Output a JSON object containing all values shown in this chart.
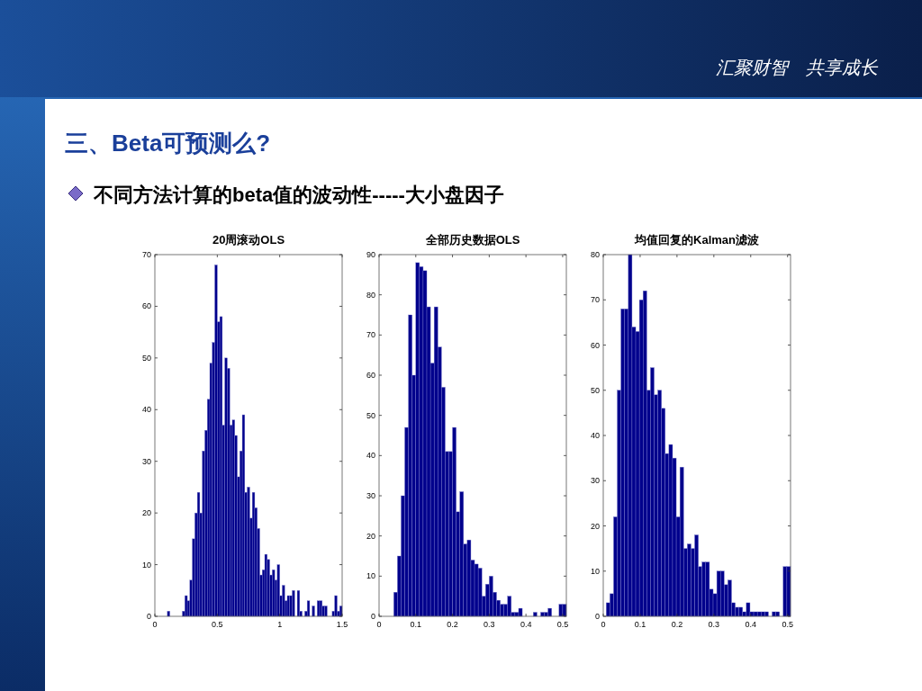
{
  "chart_data": [
    {
      "type": "histogram",
      "title": "20周滚动OLS",
      "annotations": [
        "汇聚财智　共享成长",
        "三、Beta可预测么?",
        "不同方法计算的beta值的波动性-----大小盘因子"
      ],
      "color": "#00008c",
      "bins": [
        0.1,
        0.12,
        0.14,
        0.16,
        0.18,
        0.2,
        0.22,
        0.24,
        0.26,
        0.28,
        0.3,
        0.32,
        0.34,
        0.36,
        0.38,
        0.4,
        0.42,
        0.44,
        0.46,
        0.48,
        0.5,
        0.52,
        0.54,
        0.56,
        0.58,
        0.6,
        0.62,
        0.64,
        0.66,
        0.68,
        0.7,
        0.72,
        0.74,
        0.76,
        0.78,
        0.8,
        0.82,
        0.84,
        0.86,
        0.88,
        0.9,
        0.92,
        0.94,
        0.96,
        0.98,
        1.0,
        1.02,
        1.04,
        1.06,
        1.08,
        1.1,
        1.12,
        1.14,
        1.16,
        1.18,
        1.2,
        1.22,
        1.24,
        1.26,
        1.28,
        1.3,
        1.32,
        1.34,
        1.36,
        1.38,
        1.4,
        1.42,
        1.44,
        1.46,
        1.48,
        1.5
      ],
      "values": [
        1,
        0,
        0,
        0,
        0,
        0,
        1,
        4,
        3,
        7,
        15,
        20,
        24,
        20,
        32,
        36,
        42,
        49,
        53,
        68,
        57,
        58,
        37,
        50,
        48,
        37,
        38,
        35,
        27,
        32,
        39,
        24,
        25,
        19,
        24,
        21,
        17,
        8,
        9,
        12,
        11,
        8,
        9,
        7,
        10,
        4,
        6,
        3,
        4,
        4,
        5,
        0,
        5,
        1,
        0,
        1,
        3,
        0,
        2,
        0,
        3,
        3,
        2,
        2,
        0,
        0,
        1,
        4,
        1,
        2
      ],
      "xlim": [
        0,
        1.5
      ],
      "ylim": [
        0,
        70
      ],
      "xticks": [
        0,
        0.5,
        1,
        1.5
      ],
      "yticks": [
        0,
        10,
        20,
        30,
        40,
        50,
        60,
        70
      ]
    },
    {
      "type": "histogram",
      "title": "全部历史数据OLS",
      "color": "#00008c",
      "bins": [
        0.04,
        0.05,
        0.06,
        0.07,
        0.08,
        0.09,
        0.1,
        0.11,
        0.12,
        0.13,
        0.14,
        0.15,
        0.16,
        0.17,
        0.18,
        0.19,
        0.2,
        0.21,
        0.22,
        0.23,
        0.24,
        0.25,
        0.26,
        0.27,
        0.28,
        0.29,
        0.3,
        0.31,
        0.32,
        0.33,
        0.34,
        0.35,
        0.36,
        0.37,
        0.38,
        0.39,
        0.4,
        0.41,
        0.42,
        0.43,
        0.44,
        0.45,
        0.46,
        0.47,
        0.48,
        0.49,
        0.5,
        0.51
      ],
      "values": [
        6,
        15,
        30,
        47,
        75,
        60,
        88,
        87,
        86,
        77,
        63,
        77,
        67,
        57,
        41,
        41,
        47,
        26,
        31,
        18,
        19,
        14,
        13,
        12,
        5,
        8,
        10,
        6,
        4,
        3,
        3,
        5,
        1,
        1,
        2,
        0,
        0,
        0,
        1,
        0,
        1,
        1,
        2,
        0,
        0,
        3,
        3
      ],
      "xlim": [
        0,
        0.51
      ],
      "ylim": [
        0,
        90
      ],
      "xticks": [
        0,
        0.1,
        0.2,
        0.3,
        0.4,
        0.5
      ],
      "yticks": [
        0,
        10,
        20,
        30,
        40,
        50,
        60,
        70,
        80,
        90
      ]
    },
    {
      "type": "histogram",
      "title": "均值回复的Kalman滤波",
      "color": "#00008c",
      "bins": [
        0.008,
        0.018,
        0.028,
        0.038,
        0.048,
        0.058,
        0.068,
        0.078,
        0.088,
        0.098,
        0.108,
        0.118,
        0.128,
        0.138,
        0.148,
        0.158,
        0.168,
        0.178,
        0.188,
        0.198,
        0.208,
        0.218,
        0.228,
        0.238,
        0.248,
        0.258,
        0.268,
        0.278,
        0.288,
        0.298,
        0.308,
        0.318,
        0.328,
        0.338,
        0.348,
        0.358,
        0.368,
        0.378,
        0.388,
        0.398,
        0.408,
        0.418,
        0.428,
        0.438,
        0.448,
        0.458,
        0.468,
        0.478,
        0.488,
        0.498,
        0.508
      ],
      "values": [
        3,
        5,
        22,
        50,
        68,
        68,
        80,
        64,
        63,
        70,
        72,
        50,
        55,
        49,
        50,
        46,
        36,
        38,
        35,
        22,
        33,
        15,
        16,
        15,
        18,
        11,
        12,
        12,
        6,
        5,
        10,
        10,
        7,
        8,
        3,
        2,
        2,
        1,
        3,
        1,
        1,
        1,
        1,
        1,
        0,
        1,
        1,
        0,
        11,
        11
      ],
      "xlim": [
        0,
        0.508
      ],
      "ylim": [
        0,
        80
      ],
      "xticks": [
        0,
        0.1,
        0.2,
        0.3,
        0.4,
        0.5
      ],
      "yticks": [
        0,
        10,
        20,
        30,
        40,
        50,
        60,
        70,
        80
      ]
    }
  ]
}
